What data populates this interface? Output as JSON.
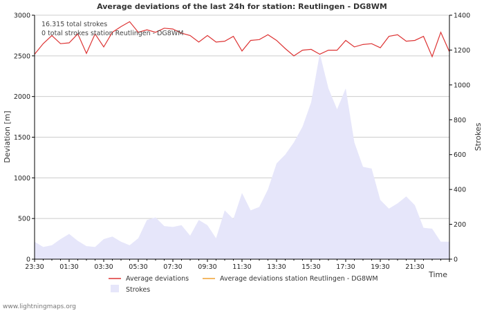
{
  "chart_data": {
    "type": "line",
    "title": "Average deviations of the last 24h for station: Reutlingen - DG8WM",
    "xlabel": "Time",
    "ylabel": "Deviation  [m]",
    "y2label": "Strokes",
    "ylim": [
      0,
      3000
    ],
    "y2lim": [
      0,
      1400
    ],
    "yticks": [
      0,
      500,
      1000,
      1500,
      2000,
      2500,
      3000
    ],
    "y2ticks": [
      0,
      200,
      400,
      600,
      800,
      1000,
      1200,
      1400
    ],
    "xticks": [
      "23:30",
      "01:30",
      "03:30",
      "05:30",
      "07:30",
      "09:30",
      "11:30",
      "13:30",
      "15:30",
      "17:30",
      "19:30",
      "21:30"
    ],
    "x_count": 49,
    "notes": [
      "16.315 total strokes",
      "0 total strokes station Reutlingen - DG8WM"
    ],
    "series": [
      {
        "name": "Average deviations",
        "axis": "left",
        "color": "#dd3333",
        "values": [
          2520,
          2650,
          2750,
          2650,
          2660,
          2770,
          2530,
          2770,
          2610,
          2790,
          2860,
          2920,
          2790,
          2820,
          2790,
          2840,
          2830,
          2780,
          2750,
          2670,
          2750,
          2670,
          2680,
          2740,
          2560,
          2690,
          2700,
          2760,
          2690,
          2590,
          2500,
          2570,
          2580,
          2520,
          2570,
          2570,
          2690,
          2610,
          2640,
          2650,
          2600,
          2740,
          2760,
          2680,
          2690,
          2740,
          2490,
          2790,
          2550
        ]
      },
      {
        "name": "Average deviations station Reutlingen - DG8WM",
        "axis": "left",
        "color": "#f0a030",
        "values": []
      },
      {
        "name": "Strokes",
        "axis": "right",
        "color": "#e6e6fa",
        "values": [
          100,
          70,
          80,
          115,
          145,
          105,
          75,
          70,
          115,
          130,
          100,
          80,
          120,
          225,
          240,
          190,
          185,
          195,
          135,
          225,
          195,
          120,
          280,
          230,
          380,
          280,
          300,
          400,
          550,
          600,
          670,
          760,
          900,
          1180,
          980,
          860,
          980,
          670,
          530,
          520,
          340,
          290,
          320,
          360,
          310,
          180,
          175,
          100,
          100
        ]
      }
    ]
  },
  "footer": "www.lightningmaps.org"
}
